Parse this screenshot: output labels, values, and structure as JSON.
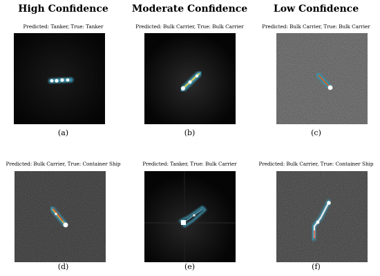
{
  "columns": {
    "high": "High Confidence",
    "moderate": "Moderate Confidence",
    "low": "Low Confidence"
  },
  "panels": [
    {
      "label": "(a)",
      "caption": "Predicted: Tanker, True: Tanker",
      "predicted": "Tanker",
      "true": "Tanker",
      "icon": "sar-ship-image"
    },
    {
      "label": "(b)",
      "caption": "Predicted: Bulk Carrier, True: Bulk Carrier",
      "predicted": "Bulk Carrier",
      "true": "Bulk Carrier",
      "icon": "sar-ship-image"
    },
    {
      "label": "(c)",
      "caption": "Predicted: Bulk Carrier, True: Bulk Carrier",
      "predicted": "Bulk Carrier",
      "true": "Bulk Carrier",
      "icon": "sar-ship-image"
    },
    {
      "label": "(d)",
      "caption": "Predicted: Bulk Carrier, True: Container Ship",
      "predicted": "Bulk Carrier",
      "true": "Container Ship",
      "icon": "sar-ship-image"
    },
    {
      "label": "(e)",
      "caption": "Predicted: Tanker, True: Bulk Carrier",
      "predicted": "Tanker",
      "true": "Bulk Carrier",
      "icon": "sar-ship-image"
    },
    {
      "label": "(f)",
      "caption": "Predicted: Bulk Carrier, True: Container Ship",
      "predicted": "Bulk Carrier",
      "true": "Container Ship",
      "icon": "sar-ship-image"
    }
  ]
}
